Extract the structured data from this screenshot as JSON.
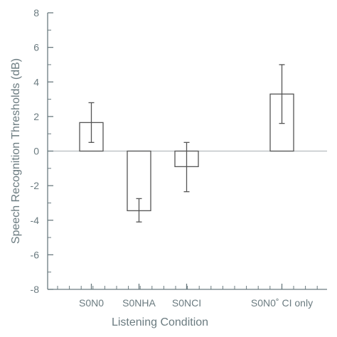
{
  "chart_data": {
    "type": "bar",
    "xlabel": "Listening Condition",
    "ylabel": "Speech Recognition Thresholds (dB)",
    "ylim": [
      -8,
      8
    ],
    "yticks": [
      8,
      6,
      4,
      2,
      0,
      -2,
      -4,
      -6,
      -8
    ],
    "ytick_labels": [
      "8",
      "6",
      "4",
      "2",
      "0",
      "-2",
      "-4",
      "-6",
      "-8"
    ],
    "categories": [
      "S0N0",
      "S0NHA",
      "S0NCI",
      "S0N0˚ CI only"
    ],
    "category_slots": [
      0,
      1,
      2,
      4
    ],
    "slot_count": 5,
    "values": [
      1.65,
      -3.45,
      -0.9,
      3.3
    ],
    "error_upper": [
      2.8,
      -2.75,
      0.5,
      5.0
    ],
    "error_lower": [
      0.5,
      -4.1,
      -2.35,
      1.6
    ],
    "grid": false,
    "zero_line": true,
    "legend": "none",
    "colors": {
      "axis": "#6b7b80",
      "bar_fill": "#ffffff",
      "bar_stroke": "#555555",
      "text": "#6b7b80",
      "zero_line": "#b5bcbe"
    }
  }
}
